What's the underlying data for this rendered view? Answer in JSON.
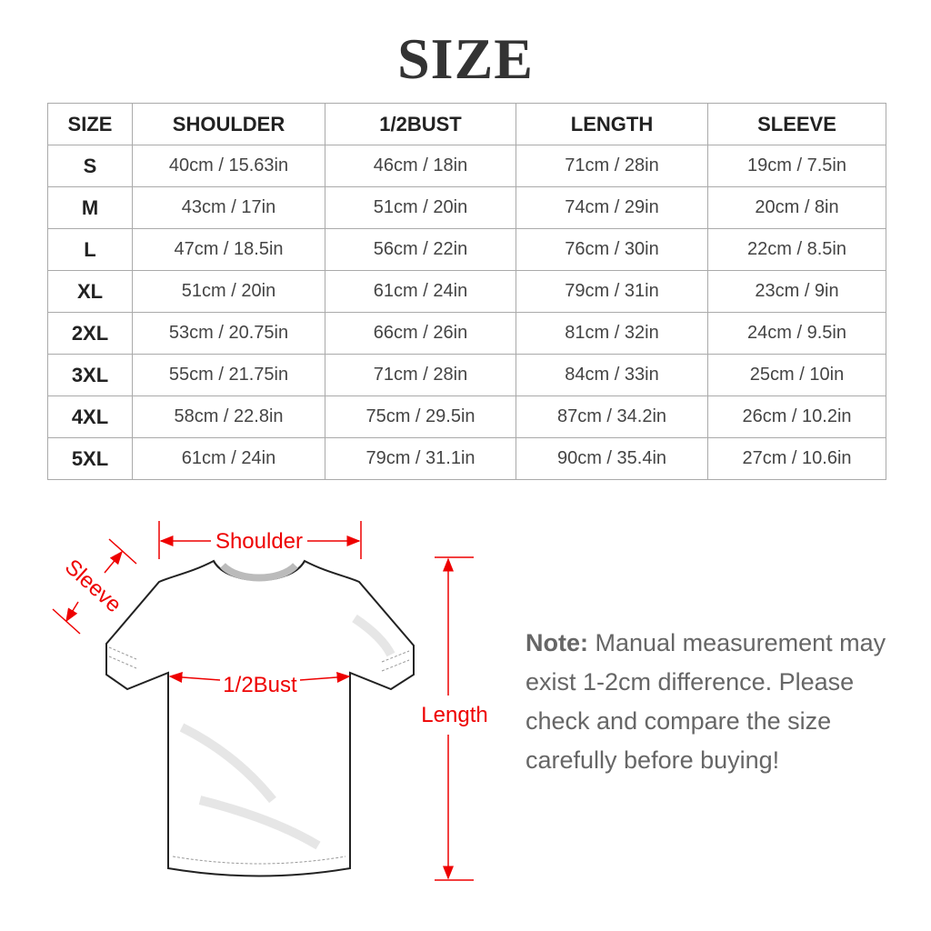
{
  "title": "SIZE",
  "table": {
    "headers": [
      "SIZE",
      "SHOULDER",
      "1/2BUST",
      "LENGTH",
      "SLEEVE"
    ],
    "rows": [
      [
        "S",
        "40cm / 15.63in",
        "46cm / 18in",
        "71cm / 28in",
        "19cm / 7.5in"
      ],
      [
        "M",
        "43cm / 17in",
        "51cm / 20in",
        "74cm / 29in",
        "20cm / 8in"
      ],
      [
        "L",
        "47cm / 18.5in",
        "56cm / 22in",
        "76cm / 30in",
        "22cm / 8.5in"
      ],
      [
        "XL",
        "51cm / 20in",
        "61cm / 24in",
        "79cm / 31in",
        "23cm / 9in"
      ],
      [
        "2XL",
        "53cm / 20.75in",
        "66cm / 26in",
        "81cm / 32in",
        "24cm / 9.5in"
      ],
      [
        "3XL",
        "55cm / 21.75in",
        "71cm / 28in",
        "84cm / 33in",
        "25cm / 10in"
      ],
      [
        "4XL",
        "58cm / 22.8in",
        "75cm / 29.5in",
        "87cm / 34.2in",
        "26cm / 10.2in"
      ],
      [
        "5XL",
        "61cm / 24in",
        "79cm / 31.1in",
        "90cm / 35.4in",
        "27cm / 10.6in"
      ]
    ]
  },
  "diagram": {
    "shoulder_label": "Shoulder",
    "sleeve_label": "Sleeve",
    "bust_label": "1/2Bust",
    "length_label": "Length",
    "arrow_color": "#e00000"
  },
  "note": {
    "label": "Note:",
    "text": "Manual measurement may exist 1-2cm difference. Please check and compare the size carefully before buying!"
  }
}
